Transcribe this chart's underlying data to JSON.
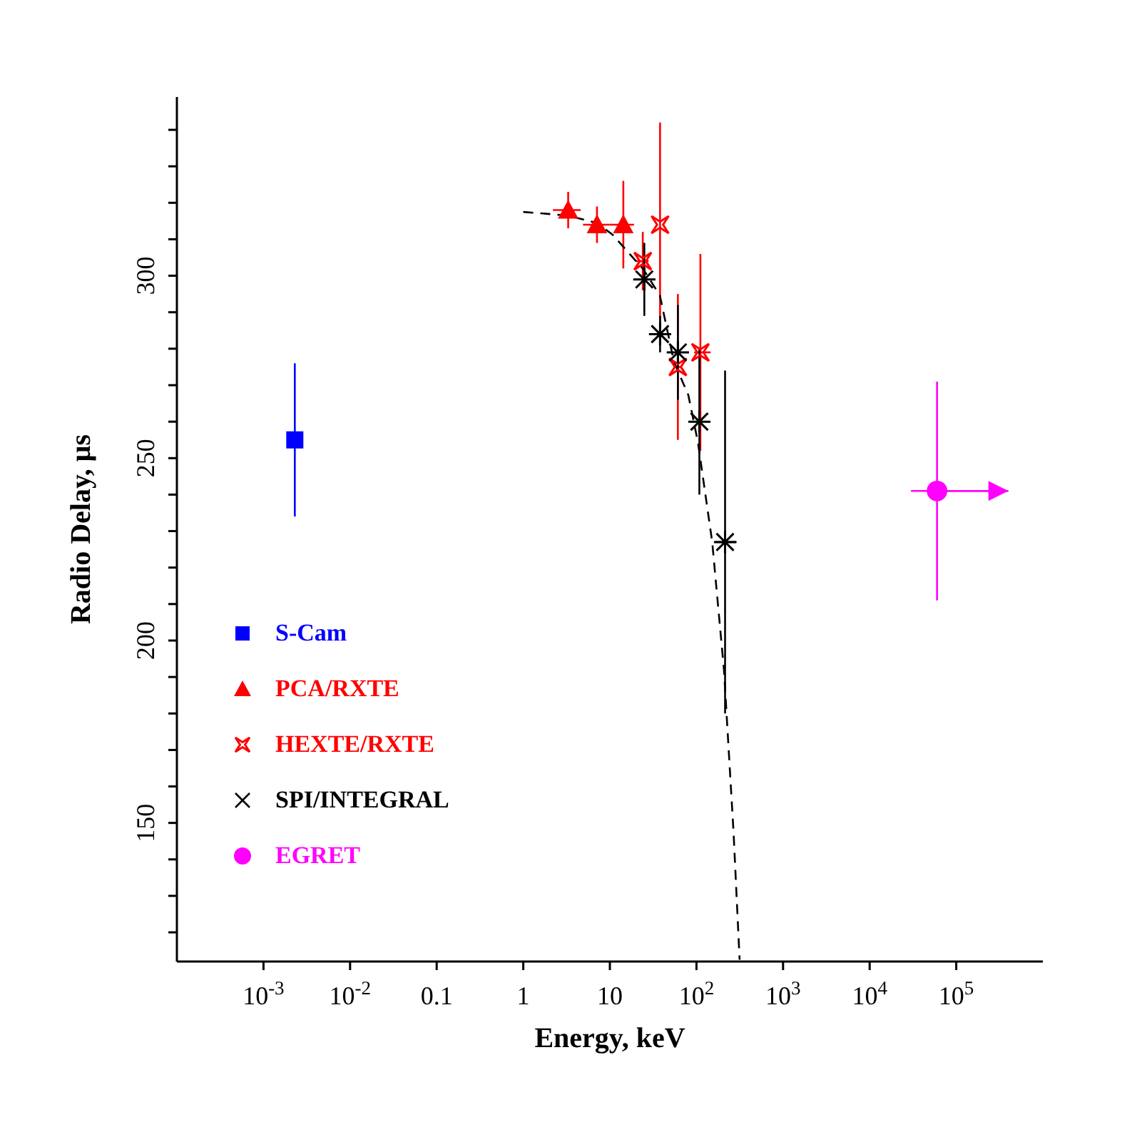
{
  "chart_data": {
    "type": "scatter",
    "xlabel": "Energy, keV",
    "ylabel": "Radio Delay, μs",
    "log": "x",
    "xlim": [
      0.0001,
      1000000
    ],
    "ylim": [
      112,
      349
    ],
    "xticks": [
      {
        "value": 0.001,
        "label": "10$^{-3}$"
      },
      {
        "value": 0.01,
        "label": "10$^{-2}$"
      },
      0.1,
      1,
      10,
      {
        "value": 100,
        "label": "10$^{2}$"
      },
      {
        "value": 1000,
        "label": "10$^{3}$"
      },
      {
        "value": 10000,
        "label": "10$^{4}$"
      },
      {
        "value": 100000,
        "label": "10$^{5}$"
      }
    ],
    "yticks": [
      {
        "value": 120,
        "label": null
      },
      {
        "value": 130,
        "label": null
      },
      {
        "value": 140,
        "label": null
      },
      150,
      {
        "value": 160,
        "label": null
      },
      {
        "value": 170,
        "label": null
      },
      {
        "value": 180,
        "label": null
      },
      {
        "value": 190,
        "label": null
      },
      200,
      {
        "value": 210,
        "label": null
      },
      {
        "value": 220,
        "label": null
      },
      {
        "value": 230,
        "label": null
      },
      {
        "value": 240,
        "label": null
      },
      250,
      {
        "value": 260,
        "label": null
      },
      {
        "value": 270,
        "label": null
      },
      {
        "value": 280,
        "label": null
      },
      {
        "value": 290,
        "label": null
      },
      300,
      {
        "value": 310,
        "label": null
      },
      {
        "value": 320,
        "label": null
      },
      {
        "value": 330,
        "label": null
      },
      {
        "value": 340,
        "label": null
      }
    ],
    "grid": false,
    "legend": "bottom left",
    "series": [
      {
        "name": "S-Cam",
        "color": "#0000ff",
        "marker": "square",
        "x": [
          0.0023
        ],
        "values": [
          255
        ],
        "errors": [
          21
        ]
      },
      {
        "name": "PCA/RXTE",
        "color": "#ff0000",
        "marker": "triangle",
        "x": [
          3.3,
          7.1,
          14.3
        ],
        "values": [
          318,
          314,
          314
        ],
        "errors": [
          5,
          5,
          12
        ],
        "xerrors": [
          [
            2.2,
            4.6
          ],
          [
            4.9,
            9.9
          ],
          [
            9.9,
            19
          ]
        ]
      },
      {
        "name": "HEXTE/RXTE",
        "color": "#ff0000",
        "marker": "star",
        "x": [
          24,
          38,
          61,
          111
        ],
        "values": [
          304,
          314,
          275,
          279
        ],
        "errors": [
          8,
          28,
          20,
          27
        ],
        "xerrors": [
          [
            20,
            28
          ],
          null,
          [
            55,
            67
          ],
          [
            94,
            146
          ]
        ]
      },
      {
        "name": "SPI/INTEGRAL",
        "color": "#000000",
        "marker": "cross",
        "x": [
          25,
          38,
          61,
          108,
          214
        ],
        "values": [
          299,
          284,
          279,
          260,
          227
        ],
        "errors": [
          10,
          5,
          13,
          20,
          47
        ],
        "xerrors": [
          null,
          null,
          null,
          null,
          [
            165,
            290
          ]
        ]
      },
      {
        "name": "EGRET",
        "color": "#ff00ff",
        "marker": "circle",
        "x": [
          60000
        ],
        "values": [
          241
        ],
        "errors": [
          30
        ],
        "xerrors": [
          [
            30000,
            400000
          ]
        ]
      },
      {
        "type": "line",
        "color": "#000000",
        "line_style": "dashed",
        "marker": "none",
        "x": [
          1,
          3.3,
          7,
          10.7,
          24.3,
          37.8,
          55,
          80.5,
          104,
          152,
          208,
          268,
          315
        ],
        "values": [
          317.5,
          316.5,
          314.5,
          311.3,
          301.8,
          294.6,
          276.4,
          267.3,
          254.3,
          227,
          191.8,
          147.5,
          112.5
        ]
      }
    ]
  }
}
